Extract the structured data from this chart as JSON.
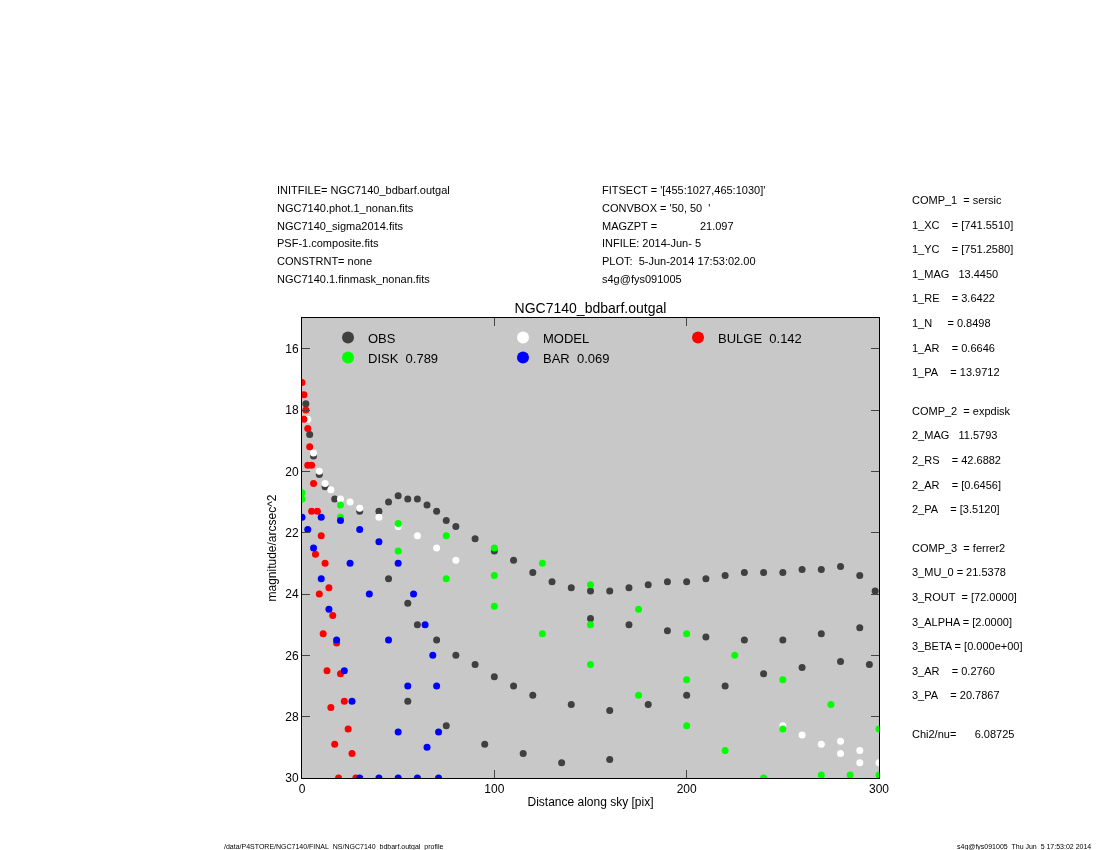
{
  "chart_data": {
    "type": "scatter",
    "title": "NGC7140_bdbarf.outgal",
    "xlabel": "Distance along sky [pix]",
    "ylabel": "magnitude/arcsec^2",
    "xlim": [
      0,
      300
    ],
    "xticks": [
      0,
      100,
      200,
      300
    ],
    "ylim": [
      30,
      15
    ],
    "yticks": [
      16,
      18,
      20,
      22,
      24,
      26,
      28,
      30
    ],
    "grid": false,
    "legend": "top",
    "marker": "circle",
    "series": [
      {
        "name": "OBS",
        "color": "#404040",
        "x": [
          2,
          4,
          6,
          9,
          12,
          17,
          30,
          40,
          45,
          50,
          55,
          60,
          65,
          70,
          75,
          80,
          90,
          100,
          110,
          120,
          130,
          140,
          150,
          160,
          170,
          180,
          190,
          200,
          210,
          220,
          230,
          240,
          250,
          260,
          270,
          280,
          290,
          298,
          45,
          55,
          60,
          70,
          80,
          90,
          100,
          110,
          120,
          140,
          160,
          180,
          200,
          220,
          240,
          260,
          280,
          295,
          150,
          170,
          190,
          210,
          230,
          250,
          270,
          290,
          55,
          75,
          95,
          115,
          135,
          160
        ],
        "values": [
          17.8,
          18.8,
          19.5,
          20.1,
          20.5,
          20.9,
          21.3,
          21.3,
          21.0,
          20.8,
          20.9,
          20.9,
          21.1,
          21.3,
          21.6,
          21.8,
          22.2,
          22.6,
          22.9,
          23.3,
          23.6,
          23.8,
          23.9,
          23.9,
          23.8,
          23.7,
          23.6,
          23.6,
          23.5,
          23.4,
          23.3,
          23.3,
          23.3,
          23.2,
          23.2,
          23.1,
          23.4,
          23.9,
          23.5,
          24.3,
          25.0,
          25.5,
          26.0,
          26.3,
          26.7,
          27.0,
          27.3,
          27.6,
          27.8,
          27.6,
          27.3,
          27.0,
          26.6,
          26.4,
          26.2,
          26.3,
          24.8,
          25.0,
          25.2,
          25.4,
          25.5,
          25.5,
          25.3,
          25.1,
          27.5,
          28.3,
          28.9,
          29.2,
          29.5,
          29.4
        ]
      },
      {
        "name": "MODEL",
        "color": "#ffffff",
        "x": [
          3,
          6,
          9,
          12,
          15,
          20,
          25,
          30,
          40,
          50,
          60,
          70,
          80,
          250,
          260,
          270,
          280,
          290,
          300,
          280,
          290
        ],
        "values": [
          18.3,
          19.4,
          20.0,
          20.4,
          20.6,
          20.9,
          21.0,
          21.2,
          21.5,
          21.8,
          22.1,
          22.5,
          22.9,
          28.3,
          28.6,
          28.9,
          29.2,
          29.5,
          29.5,
          28.8,
          29.1
        ]
      },
      {
        "name": "BULGE  0.142",
        "color": "#ff0000",
        "x": [
          0,
          1,
          2,
          3,
          4,
          5,
          6,
          8,
          10,
          12,
          14,
          16,
          18,
          20,
          22,
          24,
          26,
          28,
          1,
          3,
          5,
          7,
          9,
          11,
          13,
          15,
          17,
          19
        ],
        "values": [
          17.1,
          17.5,
          18.0,
          18.6,
          19.2,
          19.8,
          20.4,
          21.3,
          22.1,
          23.0,
          23.8,
          24.7,
          25.6,
          26.6,
          27.5,
          28.4,
          29.2,
          30.0,
          18.3,
          19.8,
          21.3,
          22.7,
          24.0,
          25.3,
          26.5,
          27.7,
          28.9,
          30.0
        ]
      },
      {
        "name": "DISK  0.789",
        "color": "#00ff00",
        "x": [
          0,
          20,
          50,
          75,
          100,
          125,
          150,
          175,
          200,
          225,
          250,
          275,
          300,
          0,
          20,
          50,
          75,
          100,
          125,
          150,
          175,
          200,
          220,
          240,
          100,
          150,
          200,
          250,
          300,
          270,
          285
        ],
        "values": [
          20.7,
          21.1,
          21.7,
          22.1,
          22.5,
          23.0,
          23.7,
          24.5,
          25.3,
          26.0,
          26.8,
          27.6,
          28.4,
          20.9,
          21.5,
          22.6,
          23.5,
          24.4,
          25.3,
          26.3,
          27.3,
          28.3,
          29.1,
          30.0,
          23.4,
          25.0,
          26.8,
          28.4,
          29.9,
          29.9,
          29.9
        ]
      },
      {
        "name": "BAR  0.069",
        "color": "#0000ff",
        "x": [
          0,
          10,
          20,
          30,
          40,
          50,
          58,
          64,
          68,
          70,
          71,
          71,
          3,
          6,
          10,
          14,
          18,
          22,
          26,
          30,
          40,
          50,
          60,
          35,
          45,
          55,
          65,
          25,
          50
        ],
        "values": [
          21.5,
          21.5,
          21.6,
          21.9,
          22.3,
          23.0,
          24.0,
          25.0,
          26.0,
          27.0,
          28.5,
          30.0,
          21.9,
          22.5,
          23.5,
          24.5,
          25.5,
          26.5,
          27.5,
          30.0,
          30.0,
          30.0,
          30.0,
          24.0,
          25.5,
          27.0,
          29.0,
          23.0,
          28.5
        ]
      }
    ],
    "annotations": [
      "INITFILE= NGC7140_bdbarf.outgal\nNGC7140.phot.1_nonan.fits\nNGC7140_sigma2014.fits\nPSF-1.composite.fits\nCONSTRNT= none\nNGC7140.1.finmask_nonan.fits",
      "FITSECT = '[455:1027,465:1030]'\nCONVBOX = '50, 50  '\nMAGZPT =              21.097\nINFILE: 2014-Jun- 5\nPLOT:  5-Jun-2014 17:53:02.00\ns4g@fys091005",
      "COMP_1  = sersic\n1_XC    = [741.5510]\n1_YC    = [751.2580]\n1_MAG   13.4450\n1_RE    = 3.6422\n1_N     = 0.8498\n1_AR    = 0.6646\n1_PA    = 13.9712\n\nCOMP_2  = expdisk\n2_MAG   11.5793\n2_RS    = 42.6882\n2_AR    = [0.6456]\n2_PA    = [3.5120]\n\nCOMP_3  = ferrer2\n3_MU_0 = 21.5378\n3_ROUT  = [72.0000]\n3_ALPHA = [2.0000]\n3_BETA = [0.000e+00]\n3_AR    = 0.2760\n3_PA    = 20.7867\n\nChi2/nu=      6.08725",
      "/data/P4STORE/NGC7140/FINAL_NS/NGC7140_bdbarf.outgal_profile",
      "s4g@fys091005  Thu Jun  5 17:53:02 2014"
    ]
  }
}
